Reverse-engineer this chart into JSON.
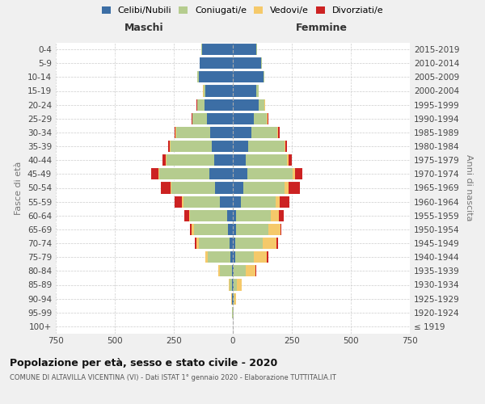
{
  "age_groups": [
    "100+",
    "95-99",
    "90-94",
    "85-89",
    "80-84",
    "75-79",
    "70-74",
    "65-69",
    "60-64",
    "55-59",
    "50-54",
    "45-49",
    "40-44",
    "35-39",
    "30-34",
    "25-29",
    "20-24",
    "15-19",
    "10-14",
    "5-9",
    "0-4"
  ],
  "birth_years": [
    "≤ 1919",
    "1920-1924",
    "1925-1929",
    "1930-1934",
    "1935-1939",
    "1940-1944",
    "1945-1949",
    "1950-1954",
    "1955-1959",
    "1960-1964",
    "1965-1969",
    "1970-1974",
    "1975-1979",
    "1980-1984",
    "1985-1989",
    "1990-1994",
    "1995-1999",
    "2000-2004",
    "2005-2009",
    "2010-2014",
    "2015-2019"
  ],
  "maschi": {
    "celibi": [
      0,
      1,
      2,
      3,
      5,
      10,
      15,
      20,
      25,
      55,
      75,
      100,
      80,
      90,
      95,
      110,
      120,
      115,
      145,
      140,
      130
    ],
    "coniugati": [
      0,
      1,
      3,
      10,
      50,
      95,
      130,
      145,
      155,
      155,
      185,
      210,
      200,
      175,
      145,
      60,
      30,
      10,
      5,
      2,
      2
    ],
    "vedovi": [
      0,
      0,
      1,
      3,
      8,
      10,
      10,
      10,
      5,
      5,
      5,
      5,
      3,
      2,
      2,
      2,
      2,
      1,
      1,
      0,
      0
    ],
    "divorziati": [
      0,
      0,
      0,
      0,
      0,
      3,
      5,
      8,
      20,
      30,
      40,
      30,
      15,
      8,
      5,
      3,
      2,
      1,
      0,
      0,
      0
    ]
  },
  "femmine": {
    "nubili": [
      0,
      1,
      2,
      3,
      5,
      10,
      10,
      12,
      15,
      35,
      45,
      60,
      55,
      65,
      80,
      90,
      110,
      100,
      130,
      120,
      100
    ],
    "coniugate": [
      0,
      1,
      5,
      15,
      50,
      80,
      115,
      140,
      145,
      145,
      175,
      195,
      175,
      155,
      110,
      55,
      25,
      10,
      5,
      2,
      2
    ],
    "vedove": [
      0,
      2,
      8,
      20,
      40,
      55,
      60,
      50,
      35,
      20,
      15,
      8,
      5,
      3,
      2,
      1,
      1,
      0,
      0,
      0,
      0
    ],
    "divorziate": [
      0,
      0,
      0,
      0,
      3,
      5,
      8,
      5,
      20,
      40,
      50,
      30,
      15,
      5,
      5,
      3,
      1,
      0,
      0,
      0,
      0
    ]
  },
  "colors": {
    "celibi_nubili": "#3c6ea5",
    "coniugati": "#b5cc8e",
    "vedovi": "#f5c96a",
    "divorziati": "#cc2222"
  },
  "title": "Popolazione per età, sesso e stato civile - 2020",
  "subtitle": "COMUNE DI ALTAVILLA VICENTINA (VI) - Dati ISTAT 1° gennaio 2020 - Elaborazione TUTTITALIA.IT",
  "xlim": 750,
  "background_color": "#f0f0f0",
  "plot_bg": "#ffffff",
  "legend_labels": [
    "Celibi/Nubili",
    "Coniugati/e",
    "Vedovi/e",
    "Divorziati/e"
  ]
}
